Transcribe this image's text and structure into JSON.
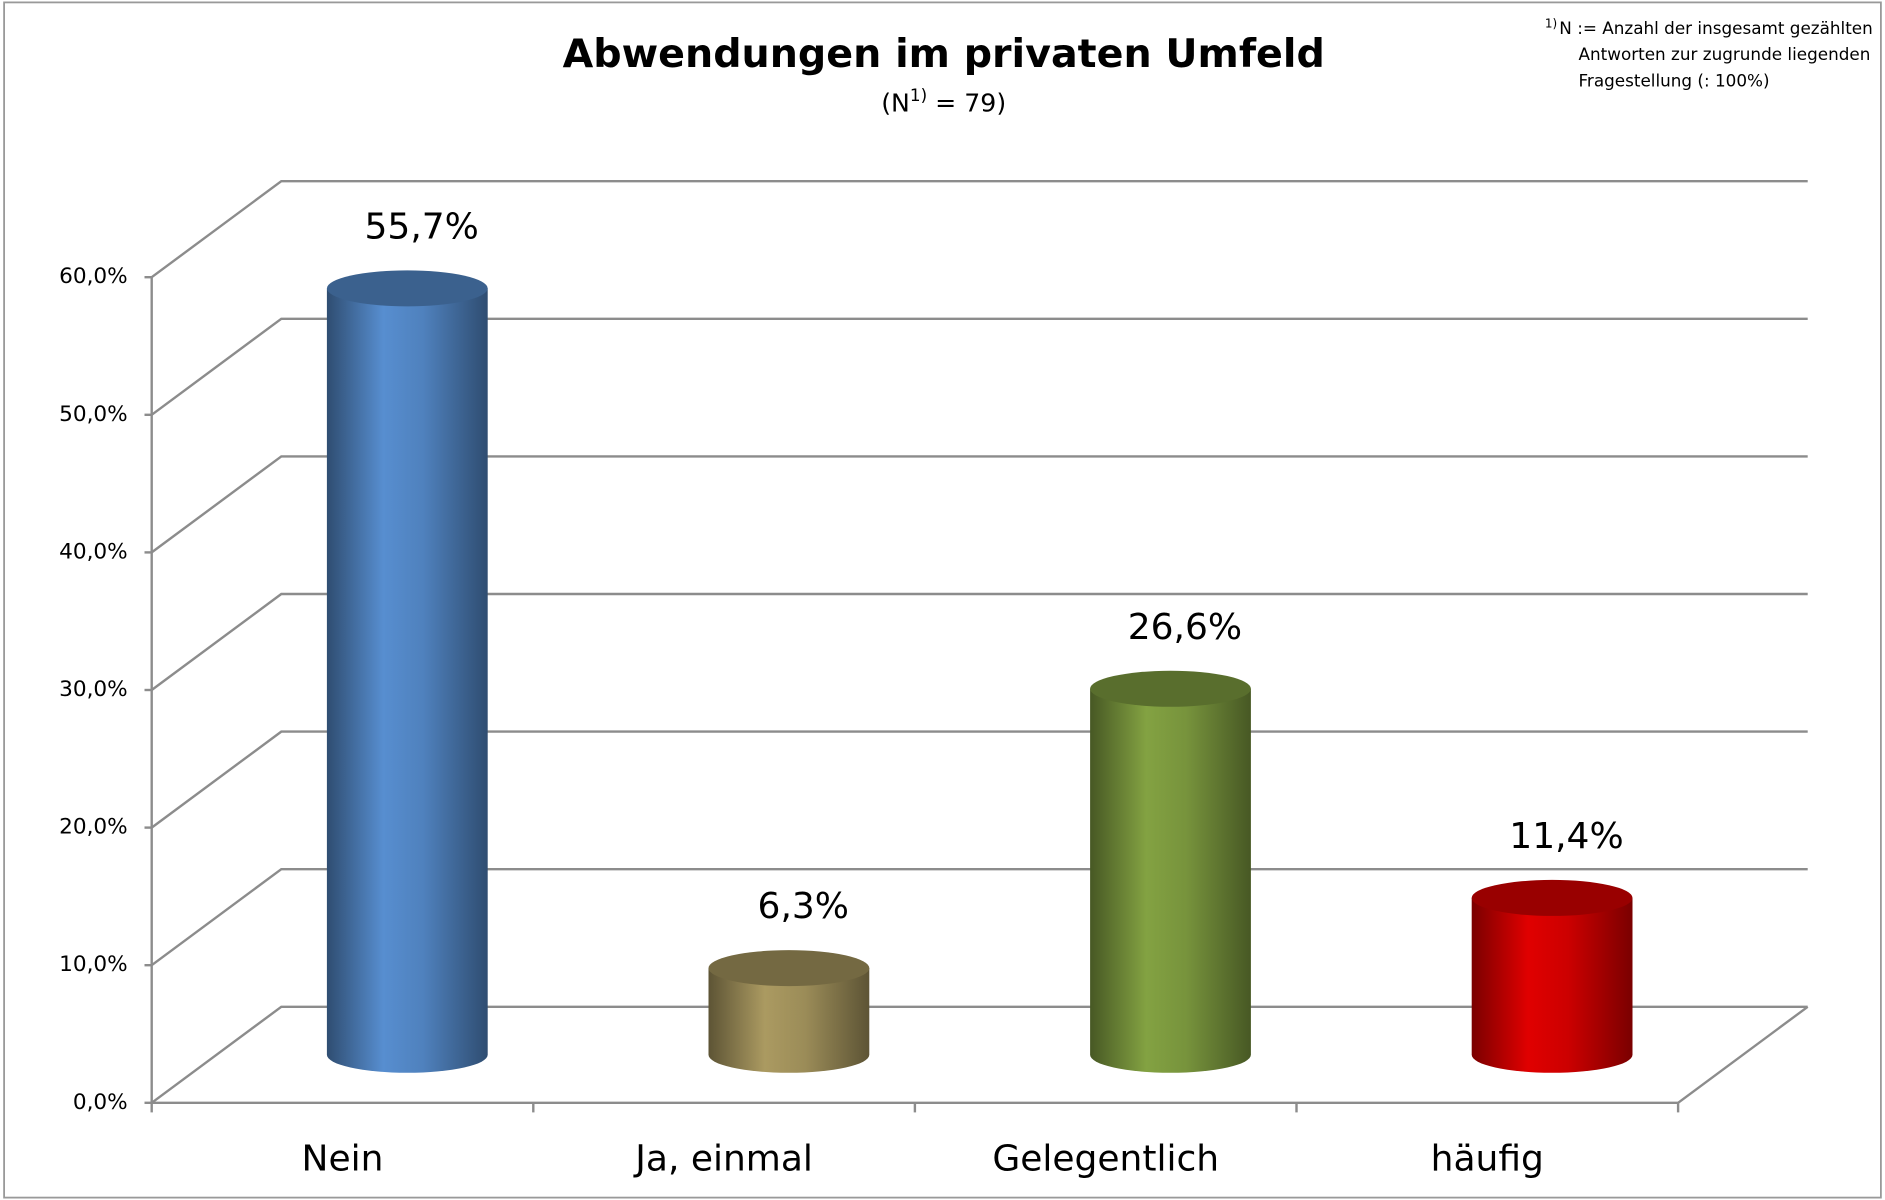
{
  "chart_data": {
    "type": "bar3d",
    "title": "Abwendungen im privaten Umfeld",
    "subtitle": {
      "prefix": "(N",
      "sup": "1)",
      "suffix": " = 79)"
    },
    "footnote": {
      "marker": "1)",
      "lines": [
        "N := Anzahl der insgesamt gezählten",
        "Antworten zur zugrunde liegenden",
        "Fragestellung (: 100%)"
      ]
    },
    "categories": [
      "Nein",
      "Ja, einmal",
      "Gelegentlich",
      "häufig"
    ],
    "values": [
      55.7,
      6.3,
      26.6,
      11.4
    ],
    "value_labels": [
      "55,7%",
      "6,3%",
      "26,6%",
      "11,4%"
    ],
    "colors": [
      "#4f81bd",
      "#9b8c58",
      "#77933c",
      "#cc0000"
    ],
    "ylim": [
      0,
      60
    ],
    "yticks": [
      {
        "value": 0,
        "label": "0,0%"
      },
      {
        "value": 10,
        "label": "10,0%"
      },
      {
        "value": 20,
        "label": "20,0%"
      },
      {
        "value": 30,
        "label": "30,0%"
      },
      {
        "value": 40,
        "label": "40,0%"
      },
      {
        "value": 50,
        "label": "50,0%"
      },
      {
        "value": 60,
        "label": "60,0%"
      }
    ],
    "grid": true
  }
}
